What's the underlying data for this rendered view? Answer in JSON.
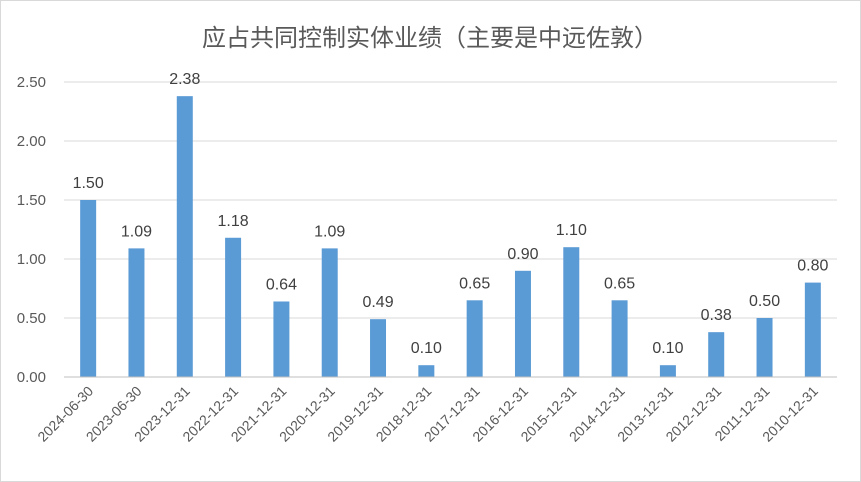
{
  "chart_data": {
    "type": "bar",
    "title": "应占共同控制实体业绩（主要是中远佐敦）",
    "xlabel": "",
    "ylabel": "",
    "ylim": [
      0,
      2.5
    ],
    "yticks": [
      "0.00",
      "0.50",
      "1.00",
      "1.50",
      "2.00",
      "2.50"
    ],
    "grid": true,
    "legend": "none",
    "bar_color": "#5b9bd5",
    "categories": [
      "2024-06-30",
      "2023-06-30",
      "2023-12-31",
      "2022-12-31",
      "2021-12-31",
      "2020-12-31",
      "2019-12-31",
      "2018-12-31",
      "2017-12-31",
      "2016-12-31",
      "2015-12-31",
      "2014-12-31",
      "2013-12-31",
      "2012-12-31",
      "2011-12-31",
      "2010-12-31"
    ],
    "values": [
      1.5,
      1.09,
      2.38,
      1.18,
      0.64,
      1.09,
      0.49,
      0.1,
      0.65,
      0.9,
      1.1,
      0.65,
      0.1,
      0.38,
      0.5,
      0.8
    ],
    "value_labels": [
      "1.50",
      "1.09",
      "2.38",
      "1.18",
      "0.64",
      "1.09",
      "0.49",
      "0.10",
      "0.65",
      "0.90",
      "1.10",
      "0.65",
      "0.10",
      "0.38",
      "0.50",
      "0.80"
    ]
  }
}
